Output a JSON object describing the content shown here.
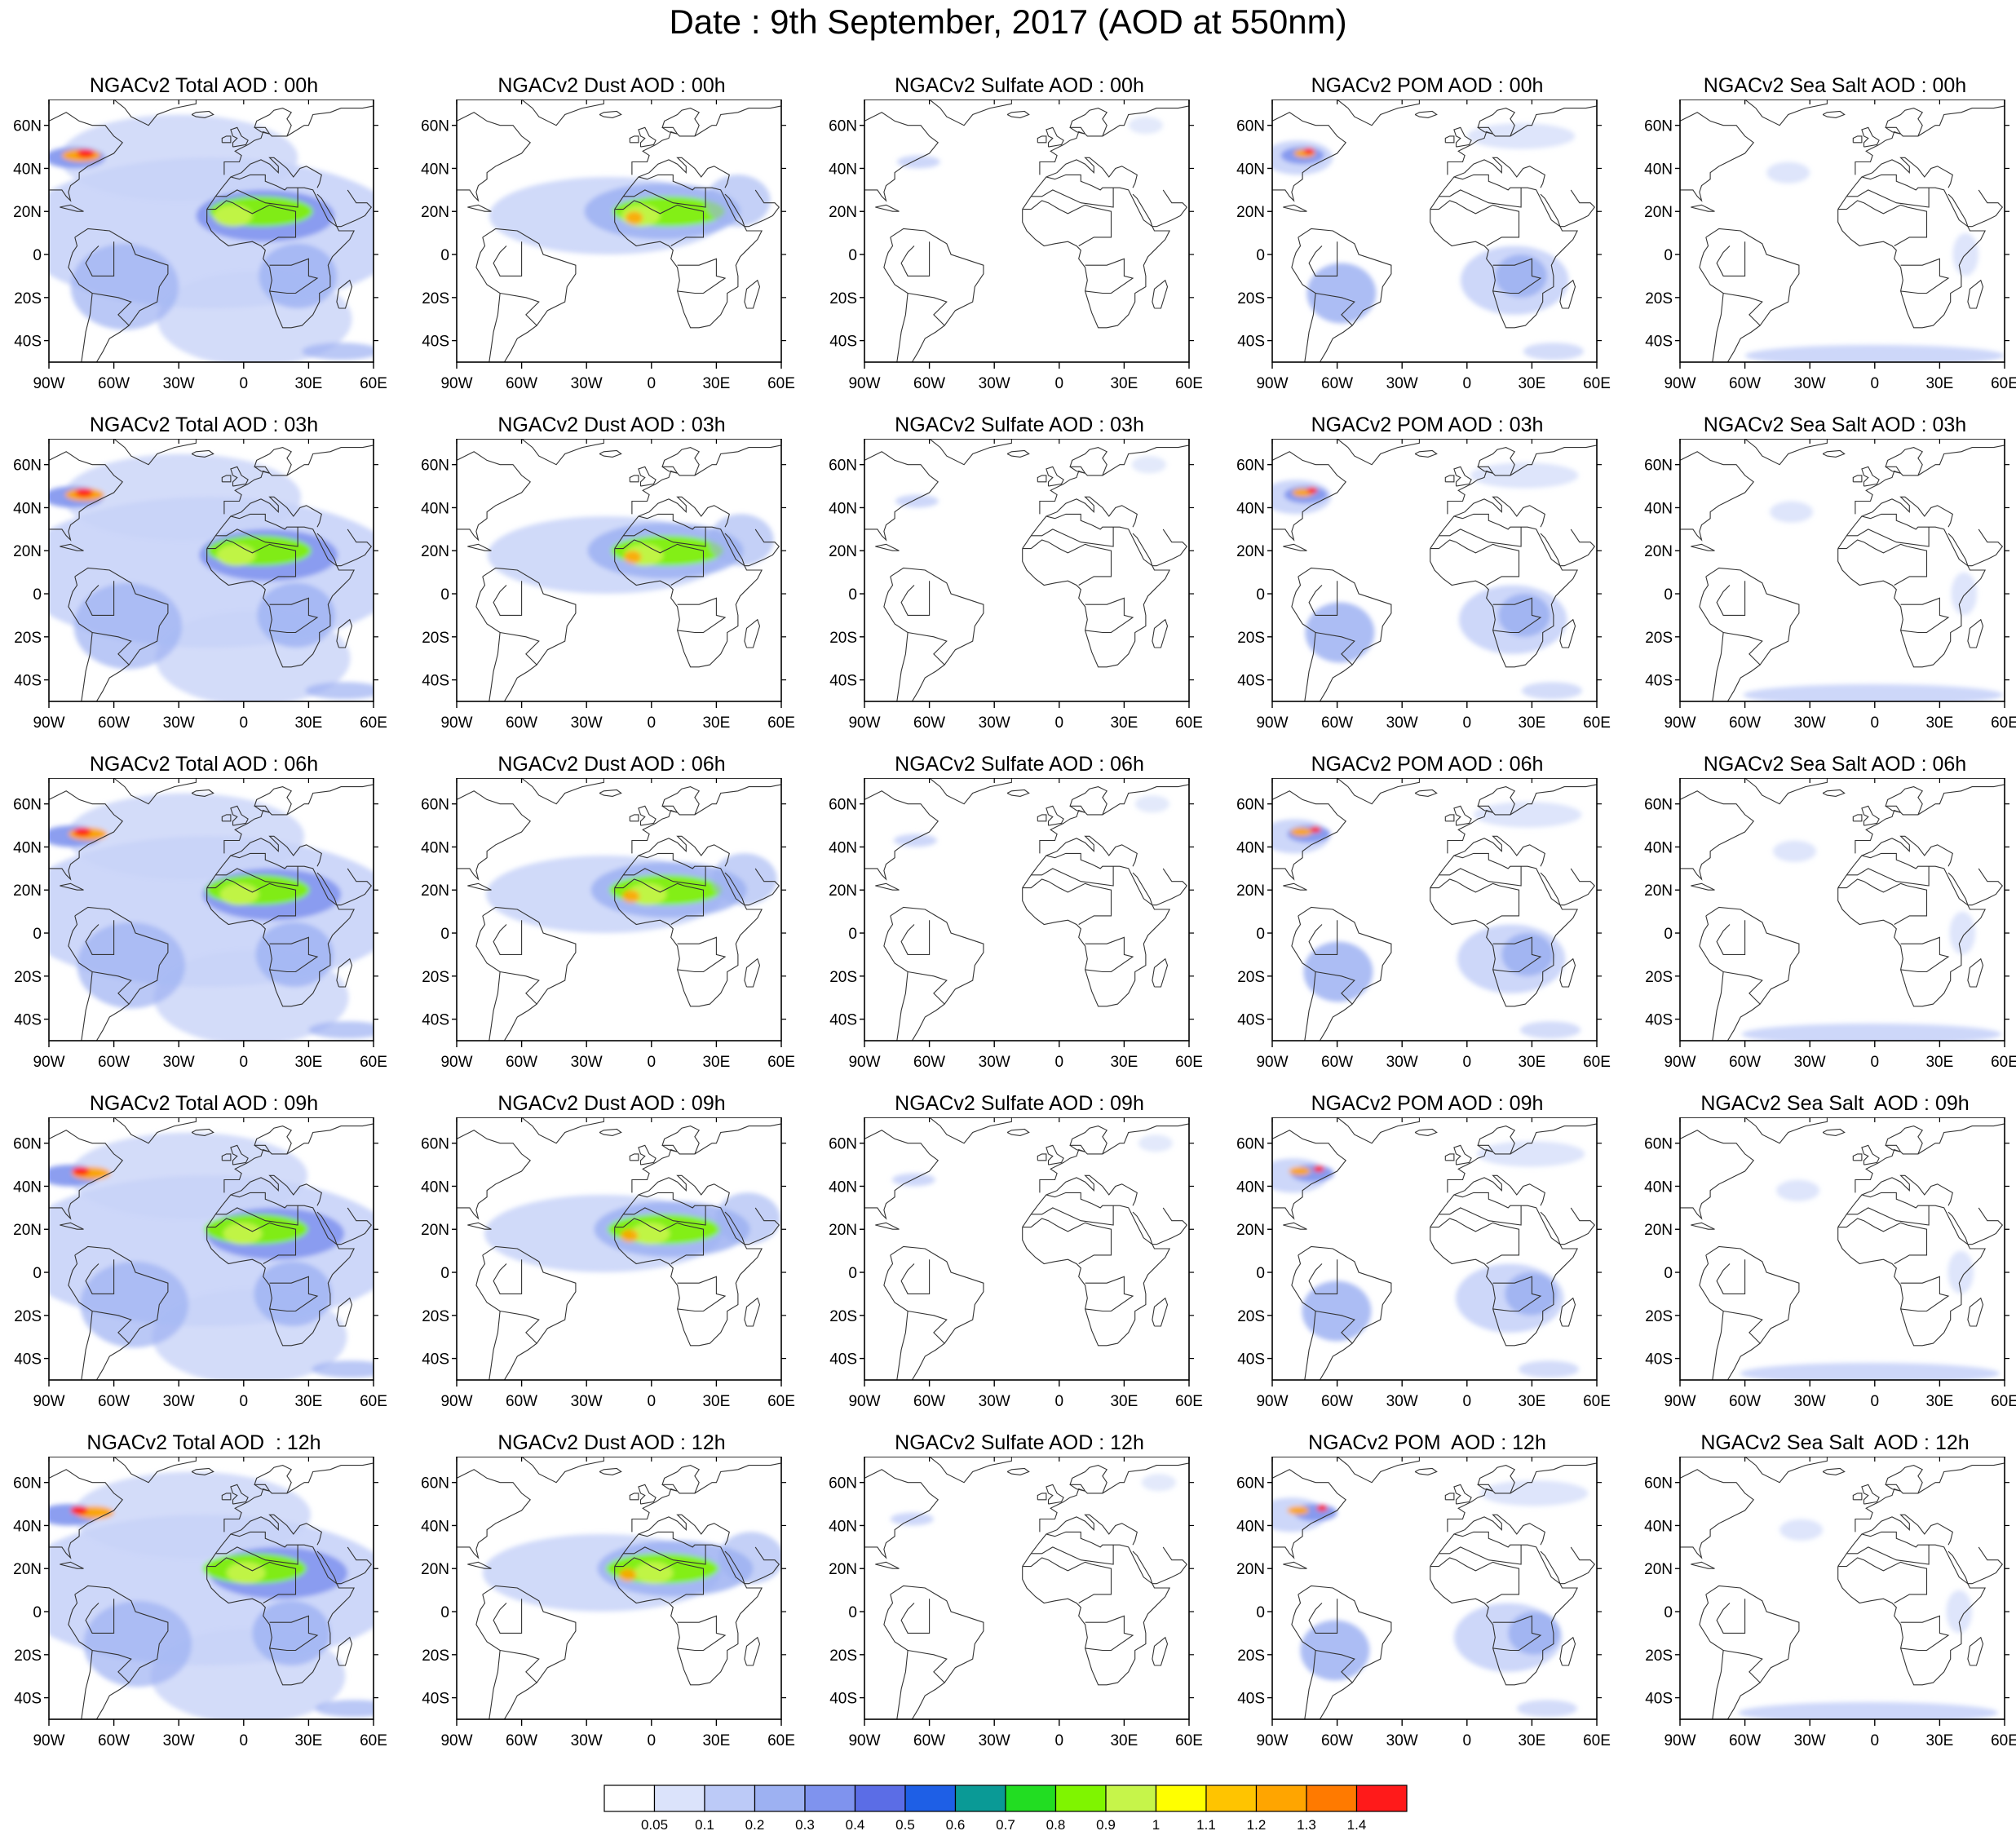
{
  "title": "Date : 9th September, 2017 (AOD at 550nm)",
  "lon_labels": [
    "90W",
    "60W",
    "30W",
    "0",
    "30E",
    "60E"
  ],
  "lat_labels": [
    "60N",
    "40N",
    "20N",
    "0",
    "20S",
    "40S"
  ],
  "rows": [
    {
      "hour": "00h",
      "titles": [
        "NGACv2 Total AOD : 00h",
        "NGACv2 Dust AOD : 00h",
        "NGACv2 Sulfate AOD : 00h",
        "NGACv2 POM AOD : 00h",
        "NGACv2 Sea Salt AOD : 00h"
      ]
    },
    {
      "hour": "03h",
      "titles": [
        "NGACv2 Total AOD : 03h",
        "NGACv2 Dust AOD : 03h",
        "NGACv2 Sulfate AOD : 03h",
        "NGACv2 POM AOD : 03h",
        "NGACv2 Sea Salt AOD : 03h"
      ]
    },
    {
      "hour": "06h",
      "titles": [
        "NGACv2 Total AOD : 06h",
        "NGACv2 Dust AOD : 06h",
        "NGACv2 Sulfate AOD : 06h",
        "NGACv2 POM AOD : 06h",
        "NGACv2 Sea Salt AOD : 06h"
      ]
    },
    {
      "hour": "09h",
      "titles": [
        "NGACv2 Total AOD : 09h",
        "NGACv2 Dust AOD : 09h",
        "NGACv2 Sulfate AOD : 09h",
        "NGACv2 POM AOD : 09h",
        "NGACv2 Sea Salt  AOD : 09h"
      ]
    },
    {
      "hour": "12h",
      "titles": [
        "NGACv2 Total AOD  : 12h",
        "NGACv2 Dust AOD : 12h",
        "NGACv2 Sulfate AOD : 12h",
        "NGACv2 POM  AOD : 12h",
        "NGACv2 Sea Salt  AOD : 12h"
      ]
    }
  ],
  "legend": {
    "labels": [
      "0.05",
      "0.1",
      "0.2",
      "0.3",
      "0.4",
      "0.5",
      "0.6",
      "0.7",
      "0.8",
      "0.9",
      "1",
      "1.1",
      "1.2",
      "1.3",
      "1.4"
    ],
    "colors": [
      "#ffffff",
      "#dbe3fb",
      "#bccaf7",
      "#9db1f2",
      "#7f93ee",
      "#5b6de6",
      "#1e5fe6",
      "#0a9a96",
      "#22dd22",
      "#7ff500",
      "#c6f54a",
      "#ffff00",
      "#ffc400",
      "#ffa500",
      "#ff7a00",
      "#ff1a1a"
    ]
  },
  "colors": {
    "land_outline": "#333333",
    "plume_blue": "#7f93ee",
    "plume_light": "#c8d3f8",
    "plume_mid": "#9db1f2",
    "dust_green": "#7ff500",
    "dust_yellow": "#c6f54a",
    "smoke_red": "#ff1a1a",
    "smoke_orange": "#ffa500"
  }
}
